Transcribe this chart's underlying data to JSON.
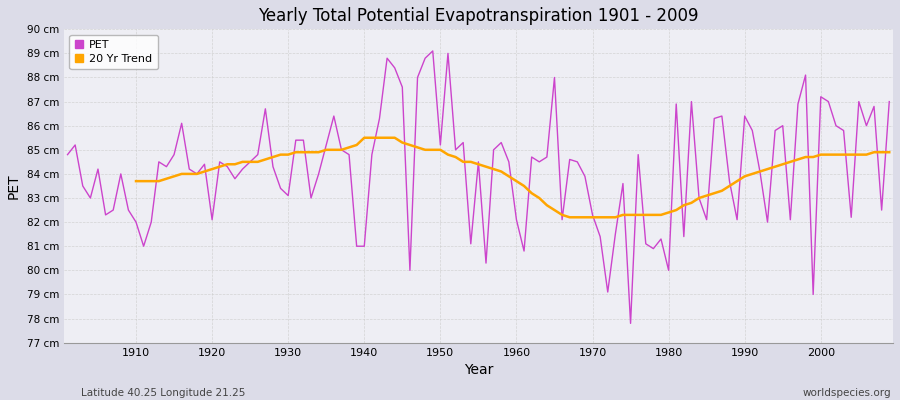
{
  "title": "Yearly Total Potential Evapotranspiration 1901 - 2009",
  "xlabel": "Year",
  "ylabel": "PET",
  "subtitle_left": "Latitude 40.25 Longitude 21.25",
  "subtitle_right": "worldspecies.org",
  "pet_color": "#CC44CC",
  "trend_color": "#FFA500",
  "fig_background_color": "#DCDCE8",
  "plot_background_color": "#EEEEF4",
  "grid_color": "#CCCCCC",
  "ylim_min": 77,
  "ylim_max": 90,
  "years": [
    1901,
    1902,
    1903,
    1904,
    1905,
    1906,
    1907,
    1908,
    1909,
    1910,
    1911,
    1912,
    1913,
    1914,
    1915,
    1916,
    1917,
    1918,
    1919,
    1920,
    1921,
    1922,
    1923,
    1924,
    1925,
    1926,
    1927,
    1928,
    1929,
    1930,
    1931,
    1932,
    1933,
    1934,
    1935,
    1936,
    1937,
    1938,
    1939,
    1940,
    1941,
    1942,
    1943,
    1944,
    1945,
    1946,
    1947,
    1948,
    1949,
    1950,
    1951,
    1952,
    1953,
    1954,
    1955,
    1956,
    1957,
    1958,
    1959,
    1960,
    1961,
    1962,
    1963,
    1964,
    1965,
    1966,
    1967,
    1968,
    1969,
    1970,
    1971,
    1972,
    1973,
    1974,
    1975,
    1976,
    1977,
    1978,
    1979,
    1980,
    1981,
    1982,
    1983,
    1984,
    1985,
    1986,
    1987,
    1988,
    1989,
    1990,
    1991,
    1992,
    1993,
    1994,
    1995,
    1996,
    1997,
    1998,
    1999,
    2000,
    2001,
    2002,
    2003,
    2004,
    2005,
    2006,
    2007,
    2008,
    2009
  ],
  "pet_values": [
    84.8,
    85.2,
    83.5,
    83.0,
    84.2,
    82.3,
    82.5,
    84.0,
    82.5,
    82.0,
    81.0,
    82.0,
    84.5,
    84.3,
    84.8,
    86.1,
    84.2,
    84.0,
    84.4,
    82.1,
    84.5,
    84.3,
    83.8,
    84.2,
    84.5,
    84.8,
    86.7,
    84.3,
    83.4,
    83.1,
    85.4,
    85.4,
    83.0,
    84.0,
    85.2,
    86.4,
    85.0,
    84.8,
    81.0,
    81.0,
    84.8,
    86.3,
    88.8,
    88.4,
    87.6,
    80.0,
    88.0,
    88.8,
    89.1,
    85.2,
    89.0,
    85.0,
    85.3,
    81.1,
    84.5,
    80.3,
    85.0,
    85.3,
    84.5,
    82.1,
    80.8,
    84.7,
    84.5,
    84.7,
    88.0,
    82.1,
    84.6,
    84.5,
    83.9,
    82.3,
    81.4,
    79.1,
    81.5,
    83.6,
    77.8,
    84.8,
    81.1,
    80.9,
    81.3,
    80.0,
    86.9,
    81.4,
    87.0,
    83.0,
    82.1,
    86.3,
    86.4,
    83.7,
    82.1,
    86.4,
    85.8,
    84.1,
    82.0,
    85.8,
    86.0,
    82.1,
    86.9,
    88.1,
    79.0,
    87.2,
    87.0,
    86.0,
    85.8,
    82.2,
    87.0,
    86.0,
    86.8,
    82.5,
    87.0
  ],
  "trend_years": [
    1910,
    1911,
    1912,
    1913,
    1914,
    1915,
    1916,
    1917,
    1918,
    1919,
    1920,
    1921,
    1922,
    1923,
    1924,
    1925,
    1926,
    1927,
    1928,
    1929,
    1930,
    1931,
    1932,
    1933,
    1934,
    1935,
    1936,
    1937,
    1938,
    1939,
    1940,
    1941,
    1942,
    1943,
    1944,
    1945,
    1946,
    1947,
    1948,
    1949,
    1950,
    1951,
    1952,
    1953,
    1954,
    1955,
    1956,
    1957,
    1958,
    1959,
    1960,
    1961,
    1962,
    1963,
    1964,
    1965,
    1966,
    1967,
    1968,
    1969,
    1970,
    1971,
    1972,
    1973,
    1974,
    1975,
    1976,
    1977,
    1978,
    1979,
    1980,
    1981,
    1982,
    1983,
    1984,
    1985,
    1986,
    1987,
    1988,
    1989,
    1990,
    1991,
    1992,
    1993,
    1994,
    1995,
    1996,
    1997,
    1998,
    1999,
    2000,
    2001,
    2002,
    2003,
    2004,
    2005,
    2006,
    2007,
    2008,
    2009
  ],
  "trend_values": [
    83.7,
    83.7,
    83.7,
    83.7,
    83.8,
    83.9,
    84.0,
    84.0,
    84.0,
    84.1,
    84.2,
    84.3,
    84.4,
    84.4,
    84.5,
    84.5,
    84.5,
    84.6,
    84.7,
    84.8,
    84.8,
    84.9,
    84.9,
    84.9,
    84.9,
    85.0,
    85.0,
    85.0,
    85.1,
    85.2,
    85.5,
    85.5,
    85.5,
    85.5,
    85.5,
    85.3,
    85.2,
    85.1,
    85.0,
    85.0,
    85.0,
    84.8,
    84.7,
    84.5,
    84.5,
    84.4,
    84.3,
    84.2,
    84.1,
    83.9,
    83.7,
    83.5,
    83.2,
    83.0,
    82.7,
    82.5,
    82.3,
    82.2,
    82.2,
    82.2,
    82.2,
    82.2,
    82.2,
    82.2,
    82.3,
    82.3,
    82.3,
    82.3,
    82.3,
    82.3,
    82.4,
    82.5,
    82.7,
    82.8,
    83.0,
    83.1,
    83.2,
    83.3,
    83.5,
    83.7,
    83.9,
    84.0,
    84.1,
    84.2,
    84.3,
    84.4,
    84.5,
    84.6,
    84.7,
    84.7,
    84.8,
    84.8,
    84.8,
    84.8,
    84.8,
    84.8,
    84.8,
    84.9,
    84.9,
    84.9
  ]
}
